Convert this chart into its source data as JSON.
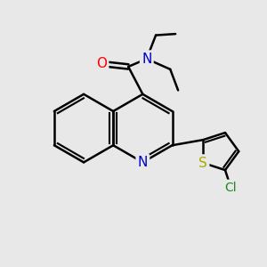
{
  "bg_color": "#e8e8e8",
  "bond_color": "#000000",
  "bond_width": 1.8,
  "atom_colors": {
    "O": "#ff0000",
    "N": "#0000cc",
    "S": "#aaaa00",
    "Cl": "#228822",
    "C": "#000000"
  },
  "font_size": 11,
  "fig_size": [
    3.0,
    3.0
  ],
  "dpi": 100,
  "xlim": [
    0,
    10
  ],
  "ylim": [
    0,
    10
  ]
}
